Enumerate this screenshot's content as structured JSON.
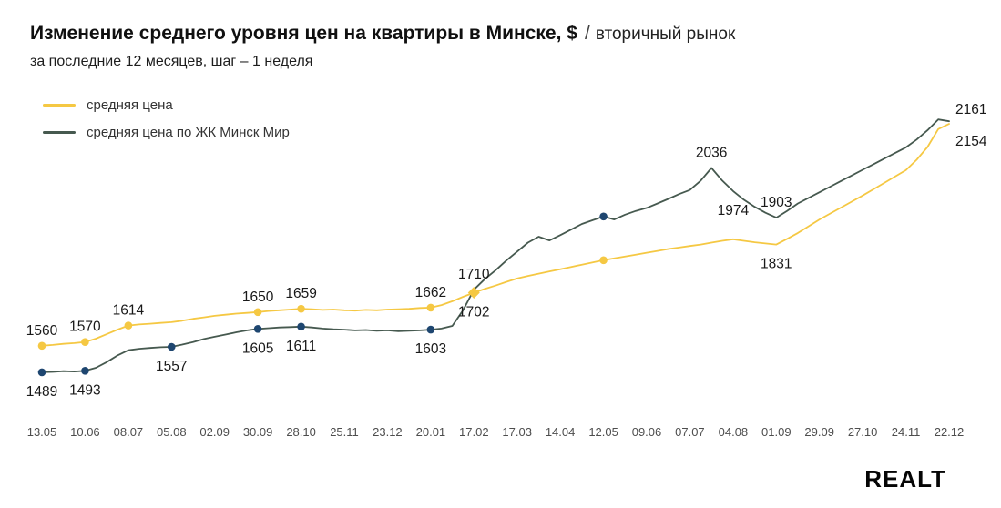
{
  "header": {
    "title_main": "Изменение среднего уровня цен на квартиры в Минске, $",
    "title_sep": "/",
    "title_suffix": "вторичный рынок",
    "subtitle": "за последние 12 месяцев, шаг – 1 неделя"
  },
  "footer": {
    "logo_text": "REALT"
  },
  "chart_data": {
    "type": "line",
    "title": "Изменение среднего уровня цен на квартиры в Минске, $ / вторичный рынок",
    "subtitle": "за последние 12 месяцев, шаг – 1 неделя",
    "xlabel": "",
    "ylabel": "",
    "grid": false,
    "legend_position": "top-left",
    "ylim": [
      1440,
      2220
    ],
    "tick_step": 4,
    "x_tick_labels": [
      "13.05",
      "10.06",
      "08.07",
      "05.08",
      "02.09",
      "30.09",
      "28.10",
      "25.11",
      "23.12",
      "20.01",
      "17.02",
      "17.03",
      "14.04",
      "12.05",
      "09.06",
      "07.07",
      "04.08",
      "01.09",
      "29.09",
      "27.10",
      "24.11",
      "22.12"
    ],
    "series": [
      {
        "name": "средняя цена",
        "slug": "avg-price",
        "color": "#F5C843",
        "marker_color": "#F5C843",
        "values": [
          1560,
          1562,
          1565,
          1567,
          1570,
          1579,
          1591,
          1603,
          1614,
          1617,
          1619,
          1621,
          1623,
          1627,
          1632,
          1636,
          1640,
          1643,
          1646,
          1648,
          1650,
          1653,
          1655,
          1657,
          1659,
          1658,
          1656,
          1657,
          1655,
          1654,
          1656,
          1655,
          1657,
          1658,
          1659,
          1661,
          1662,
          1669,
          1679,
          1691,
          1702,
          1712,
          1721,
          1731,
          1740,
          1747,
          1753,
          1759,
          1765,
          1771,
          1777,
          1783,
          1789,
          1794,
          1799,
          1804,
          1809,
          1814,
          1819,
          1823,
          1827,
          1831,
          1836,
          1841,
          1845,
          1841,
          1837,
          1834,
          1831,
          1846,
          1862,
          1880,
          1898,
          1914,
          1930,
          1946,
          1962,
          1979,
          1996,
          2013,
          2030,
          2058,
          2092,
          2140,
          2154
        ],
        "marker_indices": [
          0,
          4,
          8,
          20,
          24,
          36,
          52
        ],
        "diamond_indices": [
          40
        ],
        "point_labels": [
          {
            "i": 0,
            "text": "1560",
            "pos": "above"
          },
          {
            "i": 4,
            "text": "1570",
            "pos": "above"
          },
          {
            "i": 8,
            "text": "1614",
            "pos": "above"
          },
          {
            "i": 20,
            "text": "1650",
            "pos": "above"
          },
          {
            "i": 24,
            "text": "1659",
            "pos": "above"
          },
          {
            "i": 36,
            "text": "1662",
            "pos": "above"
          },
          {
            "i": 40,
            "text": "1702",
            "pos": "below"
          },
          {
            "i": 68,
            "text": "1831",
            "pos": "below"
          },
          {
            "i": 84,
            "text": "2154",
            "pos": "end-below"
          }
        ]
      },
      {
        "name": "средняя цена по ЖК Минск Мир",
        "slug": "minsk-mir",
        "color": "#46594F",
        "marker_color": "#1E4670",
        "values": [
          1489,
          1490,
          1492,
          1491,
          1493,
          1501,
          1516,
          1534,
          1548,
          1552,
          1554,
          1556,
          1557,
          1563,
          1570,
          1578,
          1584,
          1590,
          1596,
          1601,
          1605,
          1607,
          1609,
          1610,
          1611,
          1609,
          1606,
          1604,
          1603,
          1601,
          1602,
          1600,
          1601,
          1599,
          1600,
          1601,
          1603,
          1606,
          1613,
          1655,
          1710,
          1738,
          1762,
          1788,
          1812,
          1836,
          1852,
          1842,
          1856,
          1871,
          1886,
          1896,
          1906,
          1898,
          1911,
          1921,
          1929,
          1941,
          1953,
          1966,
          1977,
          2002,
          2036,
          2002,
          1974,
          1951,
          1932,
          1916,
          1903,
          1921,
          1941,
          1956,
          1971,
          1986,
          2001,
          2016,
          2031,
          2046,
          2061,
          2076,
          2091,
          2112,
          2137,
          2166,
          2161
        ],
        "marker_indices": [
          0,
          4,
          12,
          20,
          24,
          36,
          52
        ],
        "diamond_indices": [],
        "point_labels": [
          {
            "i": 0,
            "text": "1489",
            "pos": "below"
          },
          {
            "i": 4,
            "text": "1493",
            "pos": "below"
          },
          {
            "i": 12,
            "text": "1557",
            "pos": "below"
          },
          {
            "i": 20,
            "text": "1605",
            "pos": "below"
          },
          {
            "i": 24,
            "text": "1611",
            "pos": "below"
          },
          {
            "i": 36,
            "text": "1603",
            "pos": "below"
          },
          {
            "i": 40,
            "text": "1710",
            "pos": "above"
          },
          {
            "i": 62,
            "text": "2036",
            "pos": "above"
          },
          {
            "i": 64,
            "text": "1974",
            "pos": "below"
          },
          {
            "i": 68,
            "text": "1903",
            "pos": "above"
          },
          {
            "i": 84,
            "text": "2161",
            "pos": "end-above"
          }
        ]
      }
    ]
  }
}
